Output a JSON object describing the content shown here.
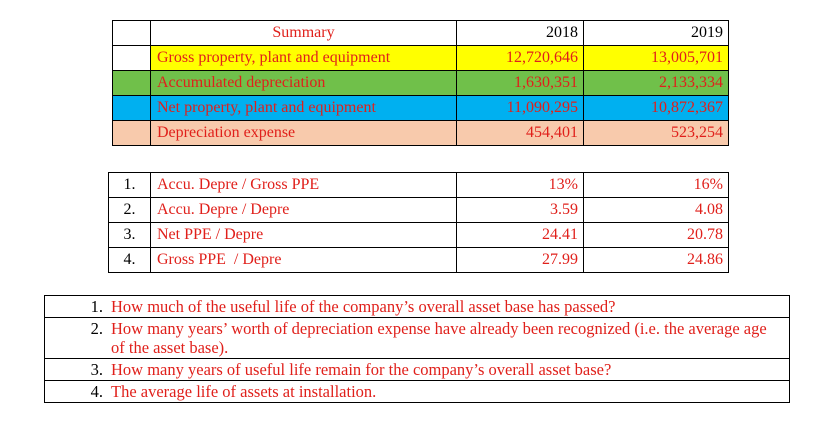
{
  "summary": {
    "header": {
      "label": "Summary",
      "year1": "2018",
      "year2": "2019"
    },
    "rows": [
      {
        "label": "Gross property, plant and equipment",
        "v2018": "12,720,646",
        "v2019": "13,005,701",
        "color": "#ffff00"
      },
      {
        "label": "Accumulated depreciation",
        "v2018": "1,630,351",
        "v2019": "2,133,334",
        "color": "#70c04a"
      },
      {
        "label": "Net property, plant and equipment",
        "v2018": "11,090,295",
        "v2019": "10,872,367",
        "color": "#00b0f0"
      },
      {
        "label": "Depreciation expense",
        "v2018": "454,401",
        "v2019": "523,254",
        "color": "#f8caac"
      }
    ]
  },
  "ratios": [
    {
      "num": "1.",
      "label": "Accu. Depre / Gross PPE",
      "v2018": "13%",
      "v2019": "16%"
    },
    {
      "num": "2.",
      "label": "Accu. Depre / Depre",
      "v2018": "3.59",
      "v2019": "4.08"
    },
    {
      "num": "3.",
      "label": "Net PPE / Depre",
      "v2018": "24.41",
      "v2019": "20.78"
    },
    {
      "num": "4.",
      "label": "Gross PPE  / Depre",
      "v2018": "27.99",
      "v2019": "24.86"
    }
  ],
  "questions": [
    {
      "num": "1.",
      "text": "How much of the useful life of the company’s overall asset base has passed?"
    },
    {
      "num": "2.",
      "text": "How many years’ worth of depreciation expense have already been recognized (i.e. the average age of the asset base)."
    },
    {
      "num": "3.",
      "text": "How many years of useful life remain for the company’s overall asset base?"
    },
    {
      "num": "4.",
      "text": "The average life of assets at installation."
    }
  ],
  "colors": {
    "text_red": "#e0201b",
    "yellow": "#ffff00",
    "green": "#70c04a",
    "blue": "#00b0f0",
    "peach": "#f8caac"
  }
}
